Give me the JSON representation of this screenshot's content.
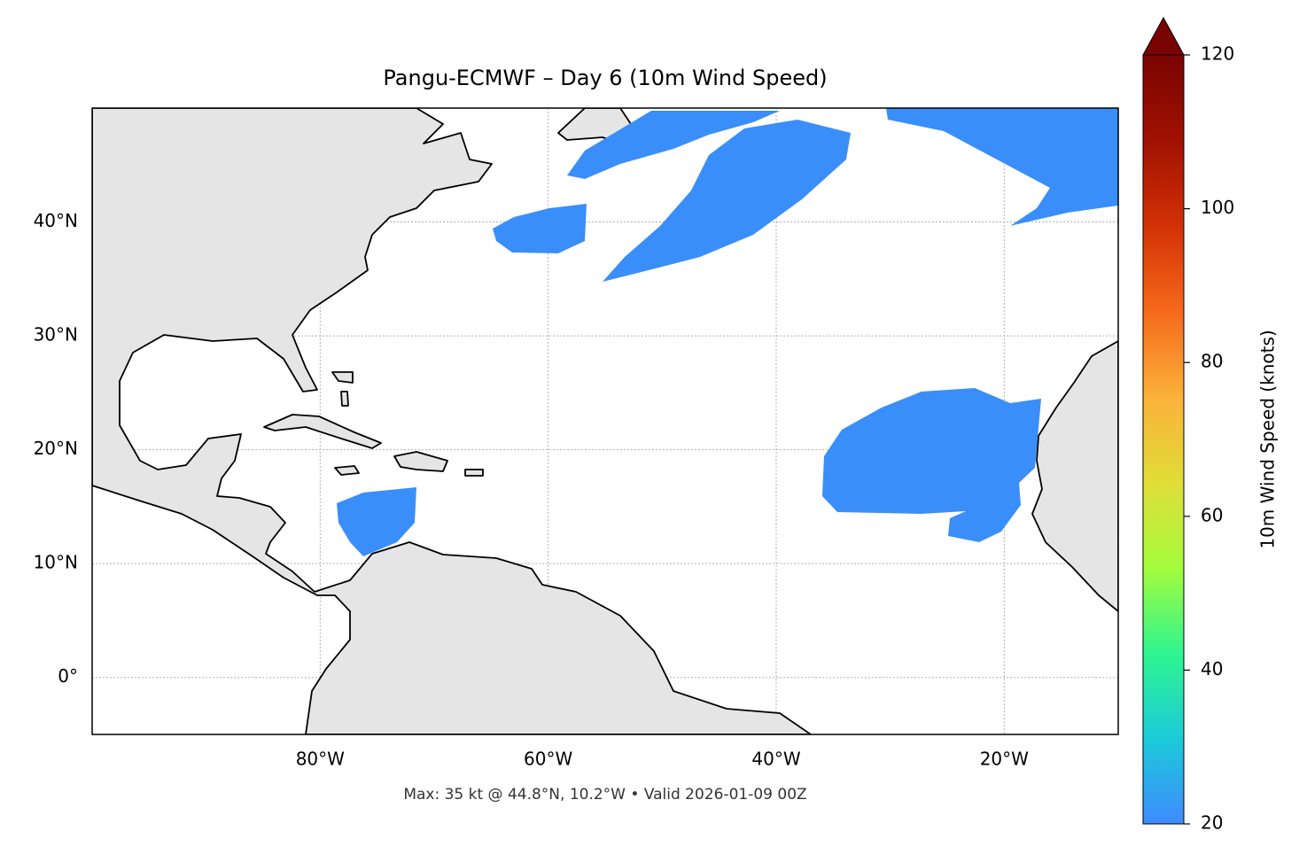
{
  "chart_data": {
    "type": "map",
    "title": "Pangu-ECMWF – Day 6 (10m Wind Speed)",
    "footer": "Max: 35 kt @ 44.8°N, 10.2°W • Valid 2026-01-09 00Z",
    "xlim": [
      -100,
      -10
    ],
    "ylim": [
      -5,
      50
    ],
    "xticks": [
      {
        "value": -80,
        "label": "80°W"
      },
      {
        "value": -60,
        "label": "60°W"
      },
      {
        "value": -40,
        "label": "40°W"
      },
      {
        "value": -20,
        "label": "20°W"
      }
    ],
    "yticks": [
      {
        "value": 0,
        "label": "0°"
      },
      {
        "value": 10,
        "label": "10°N"
      },
      {
        "value": 20,
        "label": "20°N"
      },
      {
        "value": 30,
        "label": "30°N"
      },
      {
        "value": 40,
        "label": "40°N"
      }
    ],
    "grid": true,
    "colorbar": {
      "label": "10m Wind Speed (knots)",
      "lim": [
        20,
        120
      ],
      "ticks": [
        20,
        40,
        60,
        80,
        100,
        120
      ],
      "colors": [
        "#3e8bff",
        "#1ccbd8",
        "#2ff58f",
        "#a4fc3c",
        "#e1dd37",
        "#fbb13a",
        "#f6691c",
        "#d23105",
        "#a01101",
        "#7a0403"
      ]
    }
  }
}
